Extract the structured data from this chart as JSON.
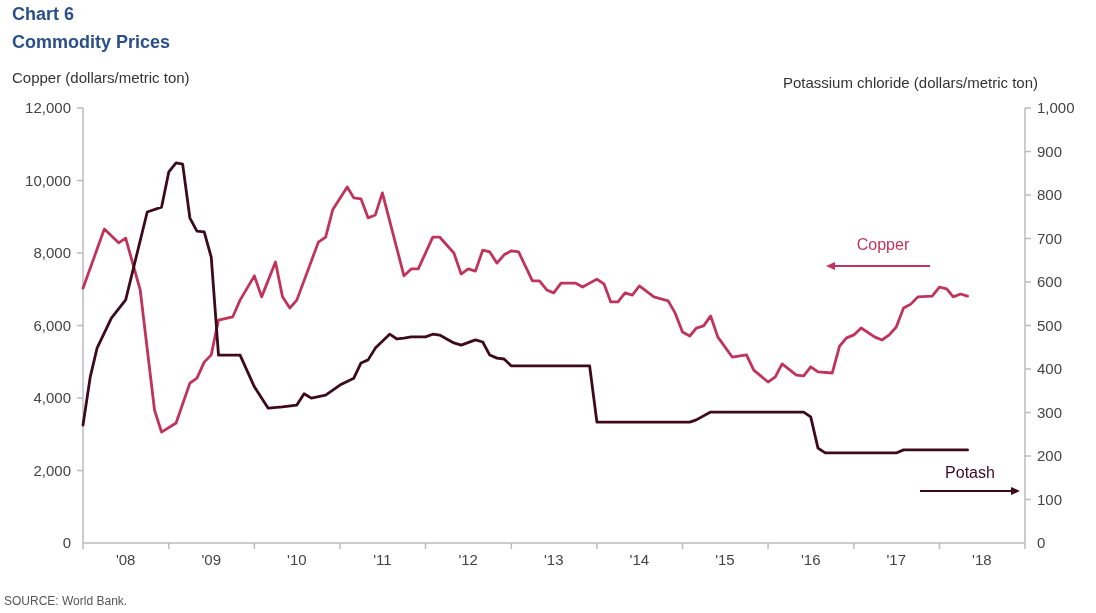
{
  "chart_data": {
    "type": "line",
    "title": "Chart 6",
    "subtitle": "Commodity Prices",
    "ylabel": "Copper (dollars/metric ton)",
    "y2label": "Potassium chloride (dollars/metric ton)",
    "annotations": [
      "SOURCE: World Bank."
    ],
    "grid": false,
    "legend": false,
    "marker": "none",
    "line_style": "solid",
    "xlim": [
      "2008-01-01",
      "2019-01-01"
    ],
    "xticks": [
      {
        "value": "2008-01-01",
        "label": null
      },
      {
        "value": "2009-01-01",
        "label": null
      },
      {
        "value": "2010-01-01",
        "label": null
      },
      {
        "value": "2011-01-01",
        "label": null
      },
      {
        "value": "2012-01-01",
        "label": null
      },
      {
        "value": "2013-01-01",
        "label": null
      },
      {
        "value": "2014-01-01",
        "label": null
      },
      {
        "value": "2015-01-01",
        "label": null
      },
      {
        "value": "2016-01-01",
        "label": null
      },
      {
        "value": "2017-01-01",
        "label": null
      },
      {
        "value": "2018-01-01",
        "label": null
      },
      {
        "value": "2019-01-01",
        "label": null
      },
      {
        "value": "2008-07-01",
        "label": "'08"
      },
      {
        "value": "2009-07-01",
        "label": "'09"
      },
      {
        "value": "2010-07-01",
        "label": "'10"
      },
      {
        "value": "2011-07-01",
        "label": "'11"
      },
      {
        "value": "2012-07-01",
        "label": "'12"
      },
      {
        "value": "2013-07-01",
        "label": "'13"
      },
      {
        "value": "2014-07-01",
        "label": "'14"
      },
      {
        "value": "2015-07-01",
        "label": "'15"
      },
      {
        "value": "2016-07-01",
        "label": "'16"
      },
      {
        "value": "2017-07-01",
        "label": "'17"
      },
      {
        "value": "2018-07-01",
        "label": "'18"
      }
    ],
    "ylim": [
      0,
      12000
    ],
    "yticks": [
      0,
      {
        "value": 2000,
        "label": "2,000"
      },
      {
        "value": 4000,
        "label": "4,000"
      },
      {
        "value": 6000,
        "label": "6,000"
      },
      {
        "value": 8000,
        "label": "8,000"
      },
      {
        "value": 10000,
        "label": "10,000"
      },
      {
        "value": 12000,
        "label": "12,000"
      }
    ],
    "y2lim": [
      0,
      1000
    ],
    "y2ticks": [
      0,
      100,
      200,
      300,
      400,
      500,
      600,
      700,
      800,
      900,
      {
        "value": 1000,
        "label": "1,000"
      }
    ],
    "series": [
      {
        "name": "Copper",
        "color": "#c0335a",
        "axis": "y",
        "x": [
          "2008-01",
          "2008-04",
          "2008-06",
          "2008-07",
          "2008-09",
          "2008-11",
          "2008-12",
          "2009-02",
          "2009-04",
          "2009-05",
          "2009-06",
          "2009-07",
          "2009-08",
          "2009-10",
          "2009-11",
          "2010-01",
          "2010-02",
          "2010-04",
          "2010-05",
          "2010-06",
          "2010-07",
          "2010-10",
          "2010-11",
          "2010-12",
          "2011-02",
          "2011-03",
          "2011-04",
          "2011-05",
          "2011-06",
          "2011-07",
          "2011-10",
          "2011-11",
          "2011-12",
          "2012-02",
          "2012-03",
          "2012-05",
          "2012-06",
          "2012-07",
          "2012-08",
          "2012-09",
          "2012-10",
          "2012-11",
          "2012-12",
          "2013-01",
          "2013-02",
          "2013-04",
          "2013-05",
          "2013-06",
          "2013-07",
          "2013-08",
          "2013-10",
          "2013-11",
          "2014-01",
          "2014-02",
          "2014-03",
          "2014-04",
          "2014-05",
          "2014-06",
          "2014-07",
          "2014-09",
          "2014-11",
          "2014-12",
          "2015-01",
          "2015-02",
          "2015-03",
          "2015-04",
          "2015-05",
          "2015-06",
          "2015-08",
          "2015-10",
          "2015-11",
          "2016-01",
          "2016-02",
          "2016-03",
          "2016-05",
          "2016-06",
          "2016-07",
          "2016-08",
          "2016-10",
          "2016-11",
          "2016-12",
          "2017-01",
          "2017-02",
          "2017-04",
          "2017-05",
          "2017-06",
          "2017-07",
          "2017-08",
          "2017-09",
          "2017-10",
          "2017-12",
          "2018-01",
          "2018-02",
          "2018-03",
          "2018-04",
          "2018-05"
        ],
        "values": [
          7030,
          8660,
          8280,
          8410,
          6980,
          3670,
          3060,
          3310,
          4410,
          4550,
          4990,
          5190,
          6150,
          6240,
          6700,
          7370,
          6790,
          7750,
          6790,
          6480,
          6700,
          8300,
          8440,
          9190,
          9820,
          9520,
          9490,
          8970,
          9050,
          9660,
          7370,
          7560,
          7560,
          8440,
          8440,
          8000,
          7420,
          7560,
          7500,
          8080,
          8030,
          7720,
          7950,
          8060,
          8030,
          7230,
          7230,
          6980,
          6900,
          7170,
          7170,
          7060,
          7280,
          7140,
          6650,
          6650,
          6900,
          6840,
          7090,
          6790,
          6680,
          6340,
          5820,
          5710,
          5930,
          5990,
          6260,
          5680,
          5130,
          5190,
          4770,
          4440,
          4580,
          4940,
          4630,
          4610,
          4860,
          4720,
          4690,
          5430,
          5660,
          5740,
          5930,
          5680,
          5600,
          5740,
          5960,
          6480,
          6590,
          6790,
          6810,
          7060,
          7010,
          6790,
          6870,
          6810
        ]
      },
      {
        "name": "Potash",
        "color": "#3d0a1a",
        "axis": "y2",
        "x": [
          "2008-01",
          "2008-02",
          "2008-03",
          "2008-05",
          "2008-07",
          "2008-10",
          "2008-12",
          "2009-01",
          "2009-02",
          "2009-03",
          "2009-04",
          "2009-05",
          "2009-06",
          "2009-07",
          "2009-08",
          "2009-11",
          "2010-01",
          "2010-03",
          "2010-05",
          "2010-07",
          "2010-08",
          "2010-09",
          "2010-11",
          "2011-01",
          "2011-03",
          "2011-04",
          "2011-05",
          "2011-06",
          "2011-08",
          "2011-09",
          "2011-10",
          "2011-11",
          "2012-01",
          "2012-02",
          "2012-03",
          "2012-05",
          "2012-06",
          "2012-08",
          "2012-09",
          "2012-10",
          "2012-11",
          "2012-12",
          "2013-01",
          "2013-12",
          "2014-01",
          "2015-02",
          "2015-03",
          "2015-05",
          "2016-06",
          "2016-07",
          "2016-08",
          "2016-09",
          "2017-07",
          "2017-08",
          "2018-05"
        ],
        "values": [
          271,
          382,
          448,
          517,
          559,
          761,
          772,
          853,
          874,
          871,
          747,
          717,
          715,
          657,
          432,
          432,
          359,
          310,
          313,
          317,
          343,
          333,
          340,
          363,
          379,
          414,
          421,
          448,
          480,
          469,
          471,
          474,
          474,
          480,
          478,
          460,
          455,
          467,
          462,
          432,
          425,
          423,
          407,
          407,
          278,
          278,
          283,
          301,
          301,
          290,
          218,
          207,
          207,
          214,
          214
        ]
      }
    ]
  }
}
